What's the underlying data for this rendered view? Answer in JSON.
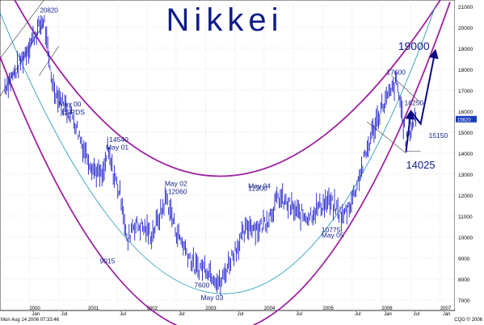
{
  "chart_data": {
    "type": "bar",
    "subtype": "price bar chart with hand-drawn channel annotations",
    "title": "Nikkei",
    "x": {
      "tick_labels": [
        "2000",
        "Jan",
        "Jul",
        "2001",
        "Jul",
        "2002",
        "Jul",
        "2003",
        "Jul",
        "2004",
        "Jul",
        "2005",
        "Jul",
        "2006",
        "Jan",
        "Jul",
        "2007",
        "Jan"
      ],
      "range": [
        "1999-07",
        "2007-04"
      ]
    },
    "y": {
      "tick_labels": [
        "21000",
        "20000",
        "19000",
        "18000",
        "17000",
        "16000",
        "15000",
        "14000",
        "13000",
        "12000",
        "11000",
        "10000",
        "9000",
        "8000",
        "7000"
      ],
      "range": [
        6500,
        21300
      ],
      "axis_side": "right",
      "last_price_marker": "15620",
      "last_price_value": 15620
    },
    "grid": true,
    "series": [
      {
        "style": "price bars",
        "color": "#2222cc",
        "points": [
          [
            "1999-08",
            17200
          ],
          [
            "1999-10",
            17800
          ],
          [
            "1999-12",
            18700
          ],
          [
            "2000-02",
            19600
          ],
          [
            "2000-04",
            20400
          ],
          [
            "2000-05",
            18300
          ],
          [
            "2000-06",
            17100
          ],
          [
            "2000-08",
            16300
          ],
          [
            "2000-10",
            15700
          ],
          [
            "2000-12",
            14300
          ],
          [
            "2001-02",
            13300
          ],
          [
            "2001-04",
            12800
          ],
          [
            "2001-05",
            14100
          ],
          [
            "2001-06",
            13200
          ],
          [
            "2001-08",
            11700
          ],
          [
            "2001-09",
            9600
          ],
          [
            "2001-10",
            10600
          ],
          [
            "2001-12",
            10500
          ],
          [
            "2002-02",
            10100
          ],
          [
            "2002-04",
            11200
          ],
          [
            "2002-05",
            11900
          ],
          [
            "2002-07",
            10300
          ],
          [
            "2002-09",
            9400
          ],
          [
            "2002-11",
            8500
          ],
          [
            "2003-01",
            8600
          ],
          [
            "2003-03",
            8100
          ],
          [
            "2003-04",
            7700
          ],
          [
            "2003-06",
            8900
          ],
          [
            "2003-08",
            9800
          ],
          [
            "2003-10",
            10600
          ],
          [
            "2003-12",
            10400
          ],
          [
            "2004-02",
            11000
          ],
          [
            "2004-04",
            11900
          ],
          [
            "2004-06",
            11500
          ],
          [
            "2004-08",
            11100
          ],
          [
            "2004-10",
            11000
          ],
          [
            "2004-12",
            11400
          ],
          [
            "2005-02",
            11700
          ],
          [
            "2005-04",
            11300
          ],
          [
            "2005-05",
            10900
          ],
          [
            "2005-07",
            11800
          ],
          [
            "2005-09",
            13300
          ],
          [
            "2005-11",
            14900
          ],
          [
            "2006-01",
            16200
          ],
          [
            "2006-03",
            16900
          ],
          [
            "2006-04",
            17400
          ],
          [
            "2006-05",
            16200
          ],
          [
            "2006-06",
            14600
          ],
          [
            "2006-07",
            15200
          ],
          [
            "2006-08",
            15800
          ]
        ]
      }
    ],
    "annotations": [
      {
        "text": "20820",
        "date": "2000-04",
        "value": 20820
      },
      {
        "text": "May 00",
        "date": "2000-05"
      },
      {
        "text": "LSRDS",
        "date": "2000-05"
      },
      {
        "text": "May 01",
        "date": "2001-05"
      },
      {
        "text": "14540",
        "date": "2001-05",
        "value": 14540
      },
      {
        "text": "May 02",
        "date": "2002-05"
      },
      {
        "text": "12060",
        "date": "2002-05",
        "value": 12060
      },
      {
        "text": "9015",
        "date": "2001-09",
        "value": 9015
      },
      {
        "text": "7600",
        "date": "2003-04",
        "value": 7600
      },
      {
        "text": "May 03",
        "date": "2003-05"
      },
      {
        "text": "May 04",
        "date": "2004-05"
      },
      {
        "text": "12200",
        "date": "2004-05",
        "value": 12200
      },
      {
        "text": "10775",
        "date": "2005-05",
        "value": 10775
      },
      {
        "text": "May 05",
        "date": "2005-05"
      },
      {
        "text": "17600",
        "date": "2006-04",
        "value": 17600
      },
      {
        "text": "16250",
        "date": "2006-07",
        "value": 16250
      },
      {
        "text": "15150",
        "date": "2006-08",
        "value": 15150
      },
      {
        "text": "14025",
        "date": "2006-06",
        "value": 14025
      },
      {
        "text": "19000",
        "date": "2006-11",
        "value": 19000
      }
    ],
    "overlays": [
      {
        "kind": "curved channel",
        "color": "#a020a0"
      },
      {
        "kind": "curved centre line",
        "color": "#2aa0b8"
      },
      {
        "kind": "trend channel lines",
        "color": "#555555"
      },
      {
        "kind": "projection arrows",
        "color": "#0a0a80"
      }
    ]
  },
  "footer": {
    "timestamp": "Mon Aug 14 2006 07:33:46",
    "copyright": "CQG © 2006"
  }
}
